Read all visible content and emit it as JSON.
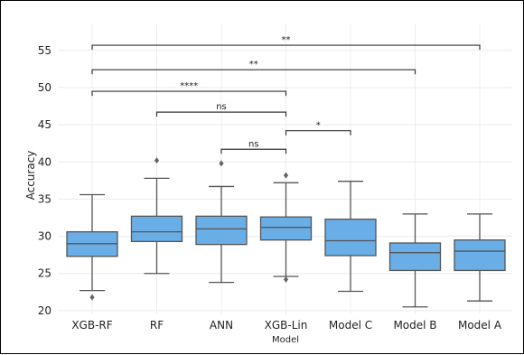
{
  "chart_data": {
    "type": "box",
    "title": "",
    "xlabel": "Model",
    "ylabel": "Accuracy",
    "ylim": [
      19.5,
      58.5
    ],
    "yticks": [
      20,
      25,
      30,
      35,
      40,
      45,
      50,
      55
    ],
    "grid": true,
    "box_color": "#6aaee8",
    "edge_color": "#555555",
    "categories": [
      "XGB-RF",
      "RF",
      "ANN",
      "XGB-Lin",
      "Model C",
      "Model B",
      "Model A"
    ],
    "boxes": [
      {
        "q1": 27.3,
        "median": 29.0,
        "q3": 30.6,
        "whisker_low": 22.7,
        "whisker_high": 35.6,
        "outliers": [
          21.8
        ]
      },
      {
        "q1": 29.3,
        "median": 30.6,
        "q3": 32.7,
        "whisker_low": 25.0,
        "whisker_high": 37.8,
        "outliers": [
          40.2
        ]
      },
      {
        "q1": 28.9,
        "median": 31.0,
        "q3": 32.7,
        "whisker_low": 23.8,
        "whisker_high": 36.7,
        "outliers": [
          39.8
        ]
      },
      {
        "q1": 29.5,
        "median": 31.2,
        "q3": 32.6,
        "whisker_low": 24.6,
        "whisker_high": 37.2,
        "outliers": [
          24.2,
          38.2
        ]
      },
      {
        "q1": 27.4,
        "median": 29.4,
        "q3": 32.3,
        "whisker_low": 22.6,
        "whisker_high": 37.4,
        "outliers": []
      },
      {
        "q1": 25.4,
        "median": 27.8,
        "q3": 29.1,
        "whisker_low": 20.5,
        "whisker_high": 33.0,
        "outliers": []
      },
      {
        "q1": 25.4,
        "median": 28.0,
        "q3": 29.5,
        "whisker_low": 21.3,
        "whisker_high": 33.0,
        "outliers": []
      }
    ],
    "annotations": [
      {
        "from": "XGB-RF",
        "to": "Model A",
        "y": 55.7,
        "label": "**"
      },
      {
        "from": "XGB-RF",
        "to": "Model B",
        "y": 52.4,
        "label": "**"
      },
      {
        "from": "XGB-RF",
        "to": "XGB-Lin",
        "y": 49.5,
        "label": "****"
      },
      {
        "from": "RF",
        "to": "XGB-Lin",
        "y": 46.7,
        "label": "ns"
      },
      {
        "from": "XGB-Lin",
        "to": "Model C",
        "y": 44.2,
        "label": "*"
      },
      {
        "from": "ANN",
        "to": "XGB-Lin",
        "y": 41.7,
        "label": "ns"
      }
    ]
  }
}
